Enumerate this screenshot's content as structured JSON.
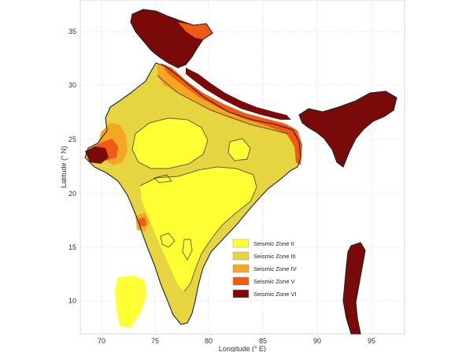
{
  "map": {
    "x_axis": {
      "label": "Longitude (° E)",
      "ticks": [
        "70",
        "75",
        "80",
        "85",
        "90",
        "95"
      ]
    },
    "y_axis": {
      "label": "Latitude (° N)",
      "ticks": [
        "35",
        "30",
        "25",
        "20",
        "15",
        "10"
      ]
    },
    "legend": {
      "placement": "lower-right",
      "items": [
        {
          "label": "Seismic Zone II",
          "color": "#ffff33"
        },
        {
          "label": "Seismic Zone III",
          "color": "#e6d440"
        },
        {
          "label": "Seismic Zone IV",
          "color": "#f5a623"
        },
        {
          "label": "Seismic Zone V",
          "color": "#f05a14"
        },
        {
          "label": "Seismic Zone VI",
          "color": "#7a0a0a"
        }
      ]
    },
    "grid": true
  }
}
